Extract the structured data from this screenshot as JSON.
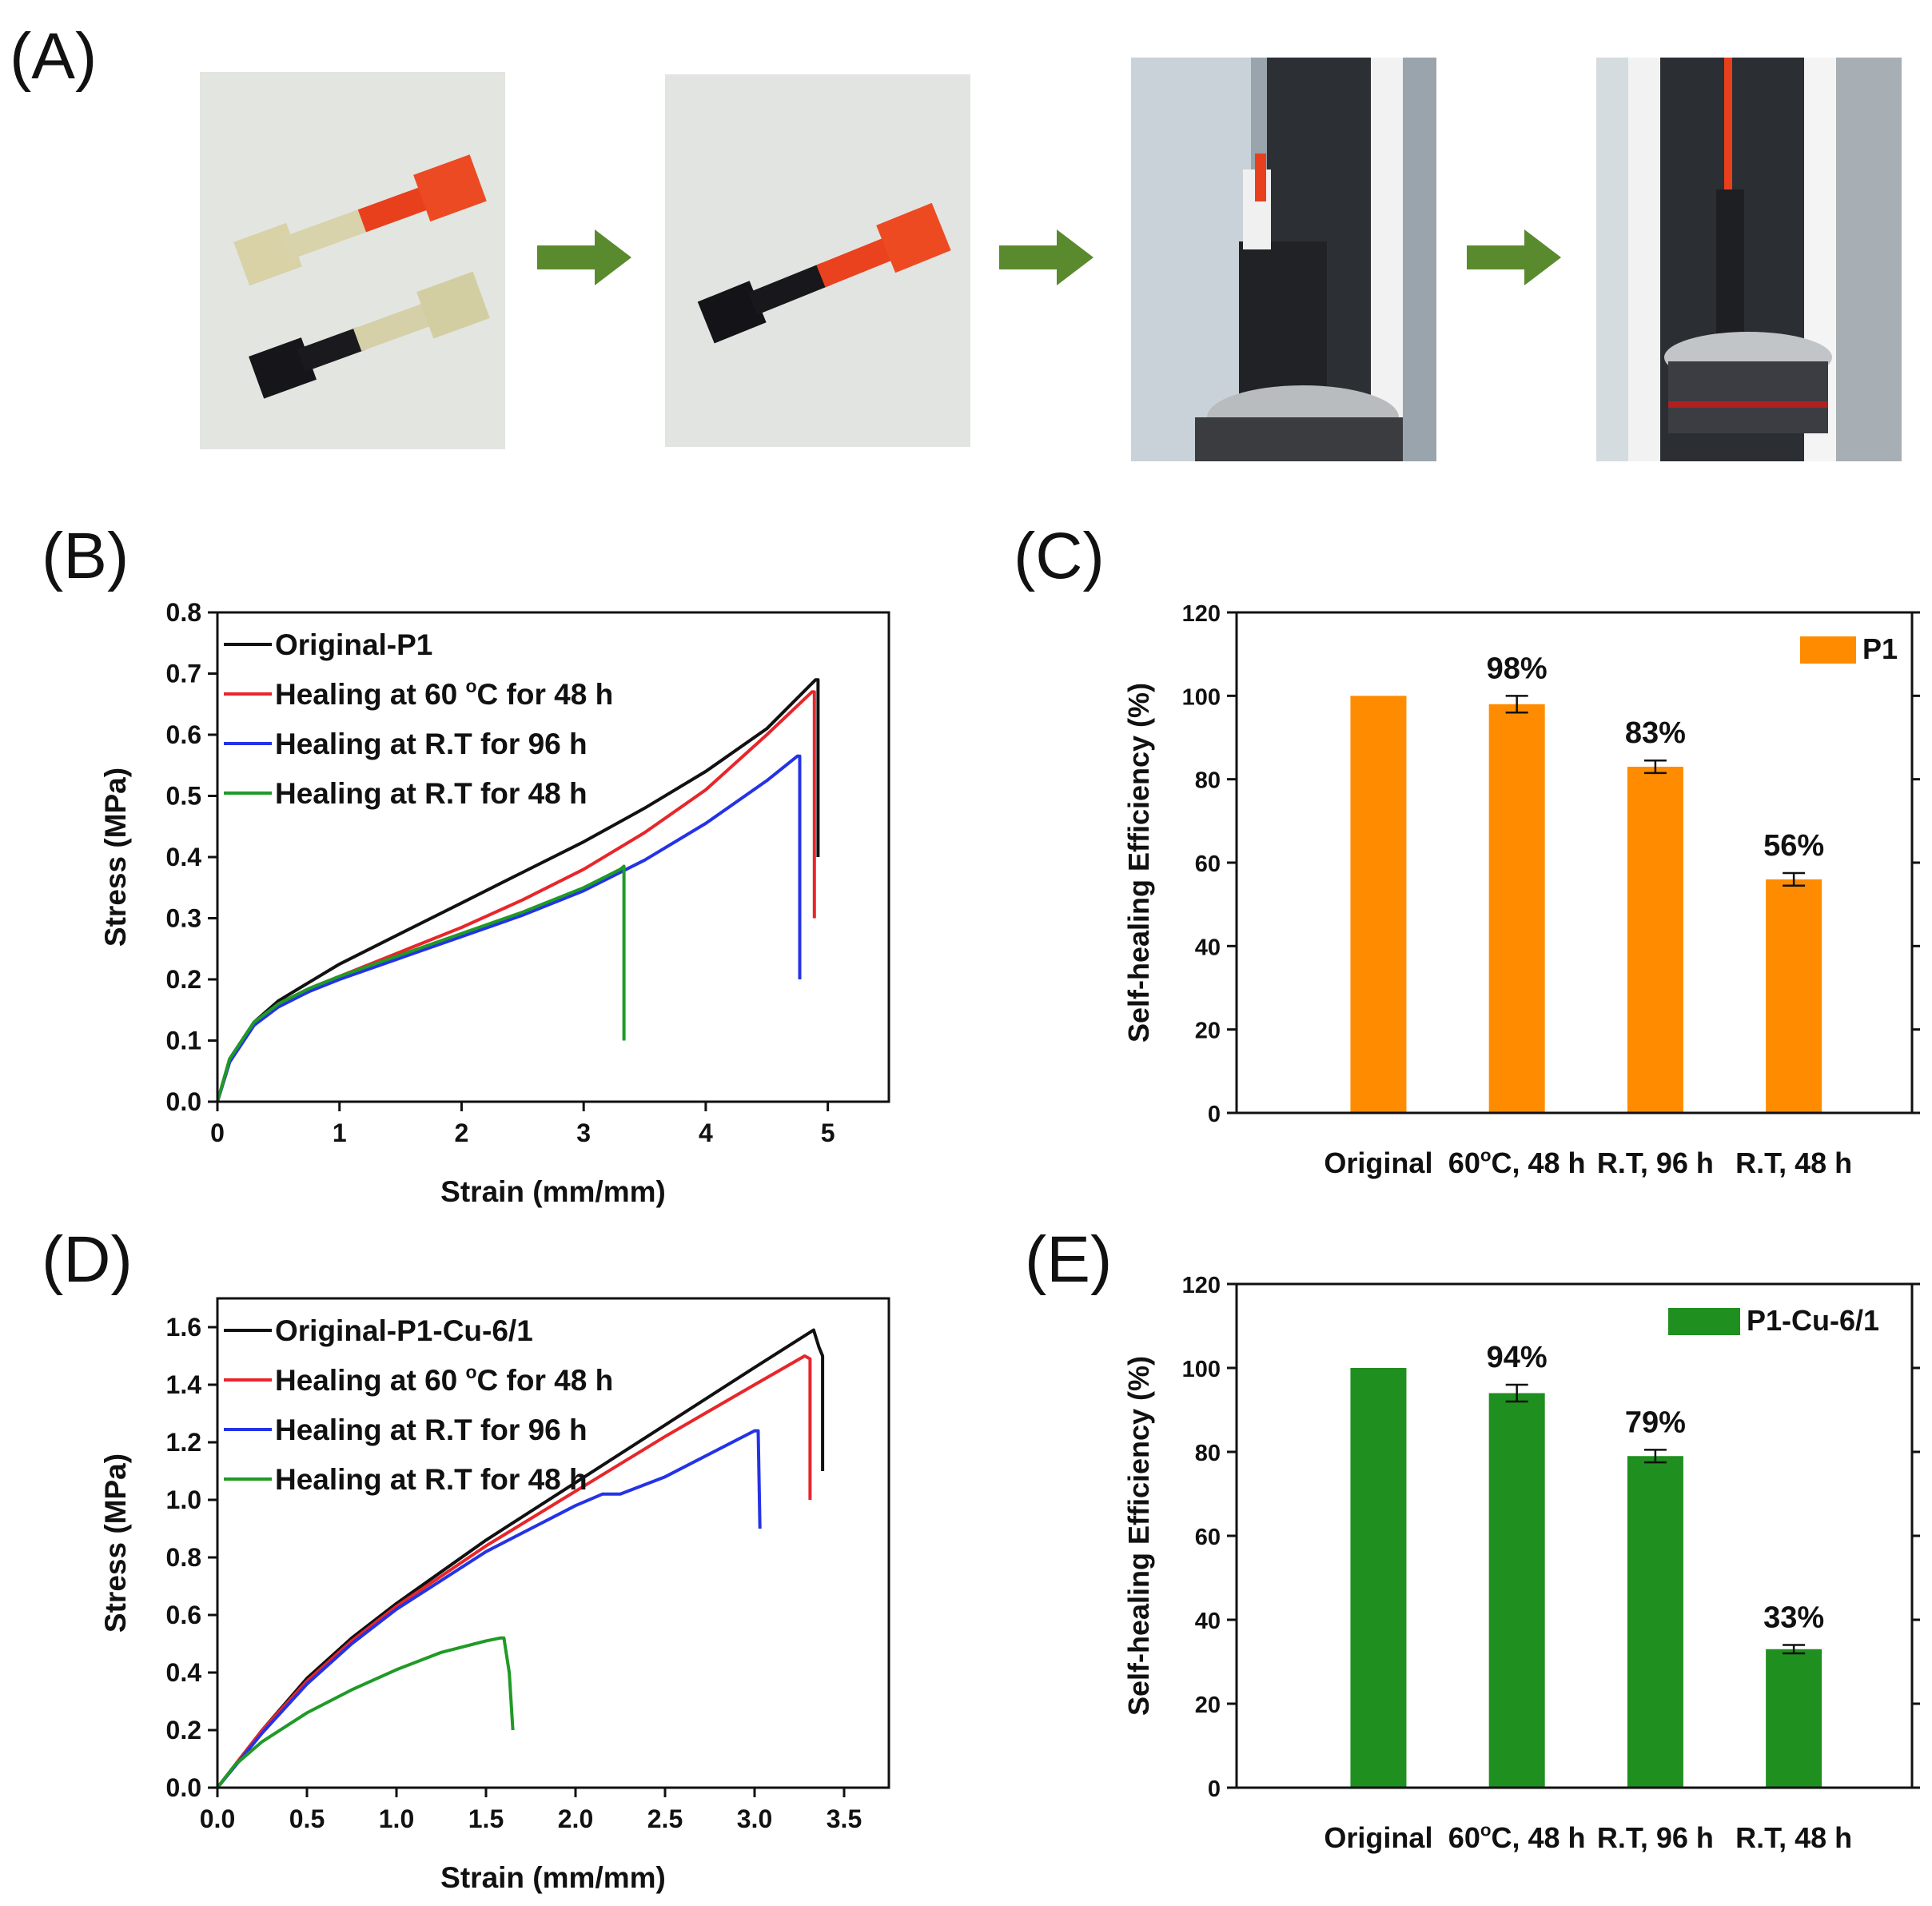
{
  "panels": {
    "a": "(A)",
    "b": "(B)",
    "c": "(C)",
    "d": "(D)",
    "e": "(E)"
  },
  "colors": {
    "black": "#111111",
    "red": "#e8262a",
    "blue": "#2433e6",
    "green": "#1f9a26",
    "orange": "#ff8c00",
    "bargreen": "#1f8f1f",
    "arrow": "#5a8a2e"
  },
  "photos": [
    {
      "name": "two-specimens-cut"
    },
    {
      "name": "spliced-specimen"
    },
    {
      "name": "tensile-tester-mounted"
    },
    {
      "name": "tensile-tester-stretched"
    }
  ],
  "chart_data": [
    {
      "id": "B",
      "type": "line",
      "xlabel": "Strain (mm/mm)",
      "ylabel": "Stress (MPa)",
      "xlim": [
        0,
        5.5
      ],
      "ylim": [
        0,
        0.8
      ],
      "xticks": [
        "0",
        "1",
        "2",
        "3",
        "4",
        "5"
      ],
      "xtick_values": [
        0,
        1,
        2,
        3,
        4,
        5
      ],
      "yticks": [
        "0.0",
        "0.1",
        "0.2",
        "0.3",
        "0.4",
        "0.5",
        "0.6",
        "0.7",
        "0.8"
      ],
      "ytick_values": [
        0,
        0.1,
        0.2,
        0.3,
        0.4,
        0.5,
        0.6,
        0.7,
        0.8
      ],
      "legend": "top-left",
      "series": [
        {
          "name": "Original-P1",
          "legend": {
            "pre": "Original-P1",
            "sup": "",
            "post": ""
          },
          "color": "black",
          "x": [
            0,
            0.1,
            0.3,
            0.5,
            0.75,
            1,
            1.5,
            2,
            2.5,
            3,
            3.5,
            4,
            4.5,
            4.9,
            4.92,
            4.92
          ],
          "y": [
            0,
            0.07,
            0.13,
            0.165,
            0.195,
            0.225,
            0.275,
            0.325,
            0.375,
            0.425,
            0.48,
            0.54,
            0.61,
            0.69,
            0.69,
            0.4
          ]
        },
        {
          "name": "Healing at 60 oC for 48 h",
          "legend": {
            "pre": "Healing at 60 ",
            "sup": "o",
            "post": "C for 48 h"
          },
          "color": "red",
          "x": [
            0,
            0.1,
            0.3,
            0.5,
            0.75,
            1,
            1.5,
            2,
            2.5,
            3,
            3.5,
            4,
            4.5,
            4.87,
            4.89,
            4.89
          ],
          "y": [
            0,
            0.065,
            0.125,
            0.16,
            0.185,
            0.205,
            0.245,
            0.285,
            0.33,
            0.38,
            0.44,
            0.51,
            0.6,
            0.67,
            0.67,
            0.3
          ]
        },
        {
          "name": "Healing at R.T for 96 h",
          "legend": {
            "pre": "Healing at R.T for 96 h",
            "sup": "",
            "post": ""
          },
          "color": "blue",
          "x": [
            0,
            0.1,
            0.3,
            0.5,
            0.75,
            1,
            1.5,
            2,
            2.5,
            3,
            3.5,
            4,
            4.5,
            4.75,
            4.77,
            4.77
          ],
          "y": [
            0,
            0.065,
            0.125,
            0.155,
            0.18,
            0.2,
            0.235,
            0.27,
            0.305,
            0.345,
            0.395,
            0.455,
            0.525,
            0.565,
            0.565,
            0.2
          ]
        },
        {
          "name": "Healing at R.T for 48 h",
          "legend": {
            "pre": "Healing at R.T for 48 h",
            "sup": "",
            "post": ""
          },
          "color": "green",
          "x": [
            0,
            0.1,
            0.3,
            0.5,
            0.75,
            1,
            1.5,
            2,
            2.5,
            3,
            3.3,
            3.33,
            3.33
          ],
          "y": [
            0,
            0.07,
            0.13,
            0.16,
            0.185,
            0.205,
            0.24,
            0.275,
            0.31,
            0.35,
            0.38,
            0.385,
            0.1
          ]
        }
      ]
    },
    {
      "id": "C",
      "type": "bar",
      "categories": [
        {
          "pre": "Original",
          "sup": "",
          "post": ""
        },
        {
          "pre": "60",
          "sup": "o",
          "post": "C, 48 h"
        },
        {
          "pre": "R.T, 96 h",
          "sup": "",
          "post": ""
        },
        {
          "pre": "R.T, 48 h",
          "sup": "",
          "post": ""
        }
      ],
      "values": [
        100,
        98,
        83,
        56
      ],
      "errors": [
        0,
        2,
        1.5,
        1.5
      ],
      "labels": [
        "",
        "98%",
        "83%",
        "56%"
      ],
      "ylabel": "Self-healing Efficiency (%)",
      "ylim": [
        0,
        120
      ],
      "yticks": [
        "0",
        "20",
        "40",
        "60",
        "80",
        "100",
        "120"
      ],
      "ytick_values": [
        0,
        20,
        40,
        60,
        80,
        100,
        120
      ],
      "legend_label": "P1",
      "color": "orange",
      "legend": "top-right"
    },
    {
      "id": "D",
      "type": "line",
      "xlabel": "Strain (mm/mm)",
      "ylabel": "Stress (MPa)",
      "xlim": [
        0,
        3.75
      ],
      "ylim": [
        0,
        1.7
      ],
      "xticks": [
        "0.0",
        "0.5",
        "1.0",
        "1.5",
        "2.0",
        "2.5",
        "3.0",
        "3.5"
      ],
      "xtick_values": [
        0,
        0.5,
        1,
        1.5,
        2,
        2.5,
        3,
        3.5
      ],
      "yticks": [
        "0.0",
        "0.2",
        "0.4",
        "0.6",
        "0.8",
        "1.0",
        "1.2",
        "1.4",
        "1.6"
      ],
      "ytick_values": [
        0,
        0.2,
        0.4,
        0.6,
        0.8,
        1,
        1.2,
        1.4,
        1.6
      ],
      "legend": "top-left",
      "series": [
        {
          "name": "Original-P1-Cu-6/1",
          "legend": {
            "pre": "Original-P1-Cu-6/1",
            "sup": "",
            "post": ""
          },
          "color": "black",
          "x": [
            0,
            0.25,
            0.5,
            0.75,
            1,
            1.5,
            2,
            2.5,
            3,
            3.33,
            3.36,
            3.38,
            3.38
          ],
          "y": [
            0,
            0.2,
            0.38,
            0.52,
            0.64,
            0.86,
            1.06,
            1.26,
            1.46,
            1.59,
            1.53,
            1.5,
            1.1
          ]
        },
        {
          "name": "Healing at 60 oC for 48 h",
          "legend": {
            "pre": "Healing at 60 ",
            "sup": "o",
            "post": "C for 48 h"
          },
          "color": "red",
          "x": [
            0,
            0.25,
            0.5,
            0.75,
            1,
            1.5,
            2,
            2.5,
            3,
            3.28,
            3.31,
            3.31
          ],
          "y": [
            0,
            0.2,
            0.37,
            0.51,
            0.63,
            0.84,
            1.03,
            1.22,
            1.4,
            1.5,
            1.49,
            1.0
          ]
        },
        {
          "name": "Healing at R.T for 96 h",
          "legend": {
            "pre": "Healing at R.T for 96 h",
            "sup": "",
            "post": ""
          },
          "color": "blue",
          "x": [
            0,
            0.25,
            0.5,
            0.75,
            1,
            1.5,
            2,
            2.15,
            2.25,
            2.5,
            3,
            3.02,
            3.03
          ],
          "y": [
            0,
            0.19,
            0.36,
            0.5,
            0.62,
            0.82,
            0.98,
            1.02,
            1.02,
            1.08,
            1.24,
            1.24,
            0.9
          ]
        },
        {
          "name": "Healing at R.T for 48 h",
          "legend": {
            "pre": "Healing at R.T for 48 h",
            "sup": "",
            "post": ""
          },
          "color": "green",
          "x": [
            0,
            0.1,
            0.25,
            0.5,
            0.75,
            1,
            1.25,
            1.5,
            1.58,
            1.6,
            1.63,
            1.65
          ],
          "y": [
            0,
            0.08,
            0.16,
            0.26,
            0.34,
            0.41,
            0.47,
            0.51,
            0.52,
            0.52,
            0.4,
            0.2
          ]
        }
      ]
    },
    {
      "id": "E",
      "type": "bar",
      "categories": [
        {
          "pre": "Original",
          "sup": "",
          "post": ""
        },
        {
          "pre": "60",
          "sup": "o",
          "post": "C, 48 h"
        },
        {
          "pre": "R.T, 96 h",
          "sup": "",
          "post": ""
        },
        {
          "pre": "R.T, 48 h",
          "sup": "",
          "post": ""
        }
      ],
      "values": [
        100,
        94,
        79,
        33
      ],
      "errors": [
        0,
        2,
        1.5,
        1
      ],
      "labels": [
        "",
        "94%",
        "79%",
        "33%"
      ],
      "ylabel": "Self-healing Efficiency (%)",
      "ylim": [
        0,
        120
      ],
      "yticks": [
        "0",
        "20",
        "40",
        "60",
        "80",
        "100",
        "120"
      ],
      "ytick_values": [
        0,
        20,
        40,
        60,
        80,
        100,
        120
      ],
      "legend_label": "P1-Cu-6/1",
      "color": "bargreen",
      "legend": "top-right"
    }
  ]
}
